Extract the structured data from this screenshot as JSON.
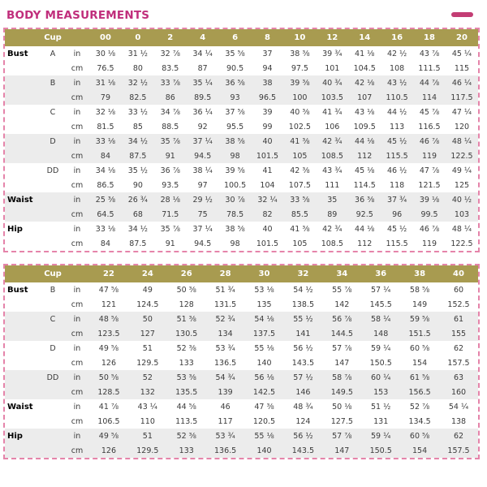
{
  "title": "BODY MEASUREMENTS",
  "colors": {
    "title_pink": "#c02e7c",
    "header_olive": "#a89b50",
    "row_shade": "#ececec",
    "dash_border_pink": "#e584aa",
    "corner_dash_pink": "#c33d74"
  },
  "tables": [
    {
      "cup_header": "Cup",
      "unit_in": "in",
      "unit_cm": "cm",
      "sizes": [
        "00",
        "0",
        "2",
        "4",
        "6",
        "8",
        "10",
        "12",
        "14",
        "16",
        "18",
        "20"
      ],
      "groups": [
        {
          "area": "Bust",
          "cup": "A",
          "shaded": false,
          "in": [
            "30 ⅛",
            "31 ½",
            "32 ⅞",
            "34 ¼",
            "35 ⅝",
            "37",
            "38 ⅜",
            "39 ¾",
            "41 ⅛",
            "42 ½",
            "43 ⅞",
            "45 ¼"
          ],
          "cm": [
            "76.5",
            "80",
            "83.5",
            "87",
            "90.5",
            "94",
            "97.5",
            "101",
            "104.5",
            "108",
            "111.5",
            "115"
          ]
        },
        {
          "area": "",
          "cup": "B",
          "shaded": true,
          "in": [
            "31 ⅛",
            "32 ½",
            "33 ⅞",
            "35 ¼",
            "36 ⅝",
            "38",
            "39 ⅜",
            "40 ¾",
            "42 ⅛",
            "43 ½",
            "44 ⅞",
            "46 ¼"
          ],
          "cm": [
            "79",
            "82.5",
            "86",
            "89.5",
            "93",
            "96.5",
            "100",
            "103.5",
            "107",
            "110.5",
            "114",
            "117.5"
          ]
        },
        {
          "area": "",
          "cup": "C",
          "shaded": false,
          "in": [
            "32 ⅛",
            "33 ½",
            "34 ⅞",
            "36 ¼",
            "37 ⅝",
            "39",
            "40 ⅜",
            "41 ¾",
            "43 ⅛",
            "44 ½",
            "45 ⅞",
            "47 ¼"
          ],
          "cm": [
            "81.5",
            "85",
            "88.5",
            "92",
            "95.5",
            "99",
            "102.5",
            "106",
            "109.5",
            "113",
            "116.5",
            "120"
          ]
        },
        {
          "area": "",
          "cup": "D",
          "shaded": true,
          "in": [
            "33 ⅛",
            "34 ½",
            "35 ⅞",
            "37 ¼",
            "38 ⅝",
            "40",
            "41 ⅜",
            "42 ¾",
            "44 ⅛",
            "45 ½",
            "46 ⅞",
            "48 ¼"
          ],
          "cm": [
            "84",
            "87.5",
            "91",
            "94.5",
            "98",
            "101.5",
            "105",
            "108.5",
            "112",
            "115.5",
            "119",
            "122.5"
          ]
        },
        {
          "area": "",
          "cup": "DD",
          "shaded": false,
          "in": [
            "34 ⅛",
            "35 ½",
            "36 ⅞",
            "38 ¼",
            "39 ⅝",
            "41",
            "42 ⅜",
            "43 ¾",
            "45 ⅛",
            "46 ½",
            "47 ⅞",
            "49 ¼"
          ],
          "cm": [
            "86.5",
            "90",
            "93.5",
            "97",
            "100.5",
            "104",
            "107.5",
            "111",
            "114.5",
            "118",
            "121.5",
            "125"
          ]
        },
        {
          "area": "Waist",
          "cup": "",
          "shaded": true,
          "in": [
            "25 ⅜",
            "26 ¾",
            "28 ⅛",
            "29 ½",
            "30 ⅞",
            "32 ¼",
            "33 ⅝",
            "35",
            "36 ⅜",
            "37 ¾",
            "39 ⅛",
            "40 ½"
          ],
          "cm": [
            "64.5",
            "68",
            "71.5",
            "75",
            "78.5",
            "82",
            "85.5",
            "89",
            "92.5",
            "96",
            "99.5",
            "103"
          ]
        },
        {
          "area": "Hip",
          "cup": "",
          "shaded": false,
          "in": [
            "33 ⅛",
            "34 ½",
            "35 ⅞",
            "37 ¼",
            "38 ⅝",
            "40",
            "41 ⅜",
            "42 ¾",
            "44 ⅛",
            "45 ½",
            "46 ⅞",
            "48 ¼"
          ],
          "cm": [
            "84",
            "87.5",
            "91",
            "94.5",
            "98",
            "101.5",
            "105",
            "108.5",
            "112",
            "115.5",
            "119",
            "122.5"
          ]
        }
      ]
    },
    {
      "cup_header": "Cup",
      "unit_in": "in",
      "unit_cm": "cm",
      "sizes": [
        "22",
        "24",
        "26",
        "28",
        "30",
        "32",
        "34",
        "36",
        "38",
        "40"
      ],
      "groups": [
        {
          "area": "Bust",
          "cup": "B",
          "shaded": false,
          "in": [
            "47 ⅝",
            "49",
            "50 ⅜",
            "51 ¾",
            "53 ⅛",
            "54 ½",
            "55 ⅞",
            "57 ¼",
            "58 ⅝",
            "60"
          ],
          "cm": [
            "121",
            "124.5",
            "128",
            "131.5",
            "135",
            "138.5",
            "142",
            "145.5",
            "149",
            "152.5"
          ]
        },
        {
          "area": "",
          "cup": "C",
          "shaded": true,
          "in": [
            "48 ⅝",
            "50",
            "51 ⅜",
            "52 ¾",
            "54 ⅛",
            "55 ½",
            "56 ⅞",
            "58 ¼",
            "59 ⅝",
            "61"
          ],
          "cm": [
            "123.5",
            "127",
            "130.5",
            "134",
            "137.5",
            "141",
            "144.5",
            "148",
            "151.5",
            "155"
          ]
        },
        {
          "area": "",
          "cup": "D",
          "shaded": false,
          "in": [
            "49 ⅝",
            "51",
            "52 ⅜",
            "53 ¾",
            "55 ⅛",
            "56 ½",
            "57 ⅞",
            "59 ¼",
            "60 ⅝",
            "62"
          ],
          "cm": [
            "126",
            "129.5",
            "133",
            "136.5",
            "140",
            "143.5",
            "147",
            "150.5",
            "154",
            "157.5"
          ]
        },
        {
          "area": "",
          "cup": "DD",
          "shaded": true,
          "in": [
            "50 ⅝",
            "52",
            "53 ⅜",
            "54 ¾",
            "56 ⅛",
            "57 ½",
            "58 ⅞",
            "60 ¼",
            "61 ⅝",
            "63"
          ],
          "cm": [
            "128.5",
            "132",
            "135.5",
            "139",
            "142.5",
            "146",
            "149.5",
            "153",
            "156.5",
            "160"
          ]
        },
        {
          "area": "Waist",
          "cup": "",
          "shaded": false,
          "in": [
            "41 ⅞",
            "43 ¼",
            "44 ⅝",
            "46",
            "47 ⅜",
            "48 ¾",
            "50 ⅛",
            "51 ½",
            "52 ⅞",
            "54 ¼"
          ],
          "cm": [
            "106.5",
            "110",
            "113.5",
            "117",
            "120.5",
            "124",
            "127.5",
            "131",
            "134.5",
            "138"
          ]
        },
        {
          "area": "Hip",
          "cup": "",
          "shaded": true,
          "in": [
            "49 ⅝",
            "51",
            "52 ⅜",
            "53 ¾",
            "55 ⅛",
            "56 ½",
            "57 ⅞",
            "59 ¼",
            "60 ⅝",
            "62"
          ],
          "cm": [
            "126",
            "129.5",
            "133",
            "136.5",
            "140",
            "143.5",
            "147",
            "150.5",
            "154",
            "157.5"
          ]
        }
      ]
    }
  ]
}
